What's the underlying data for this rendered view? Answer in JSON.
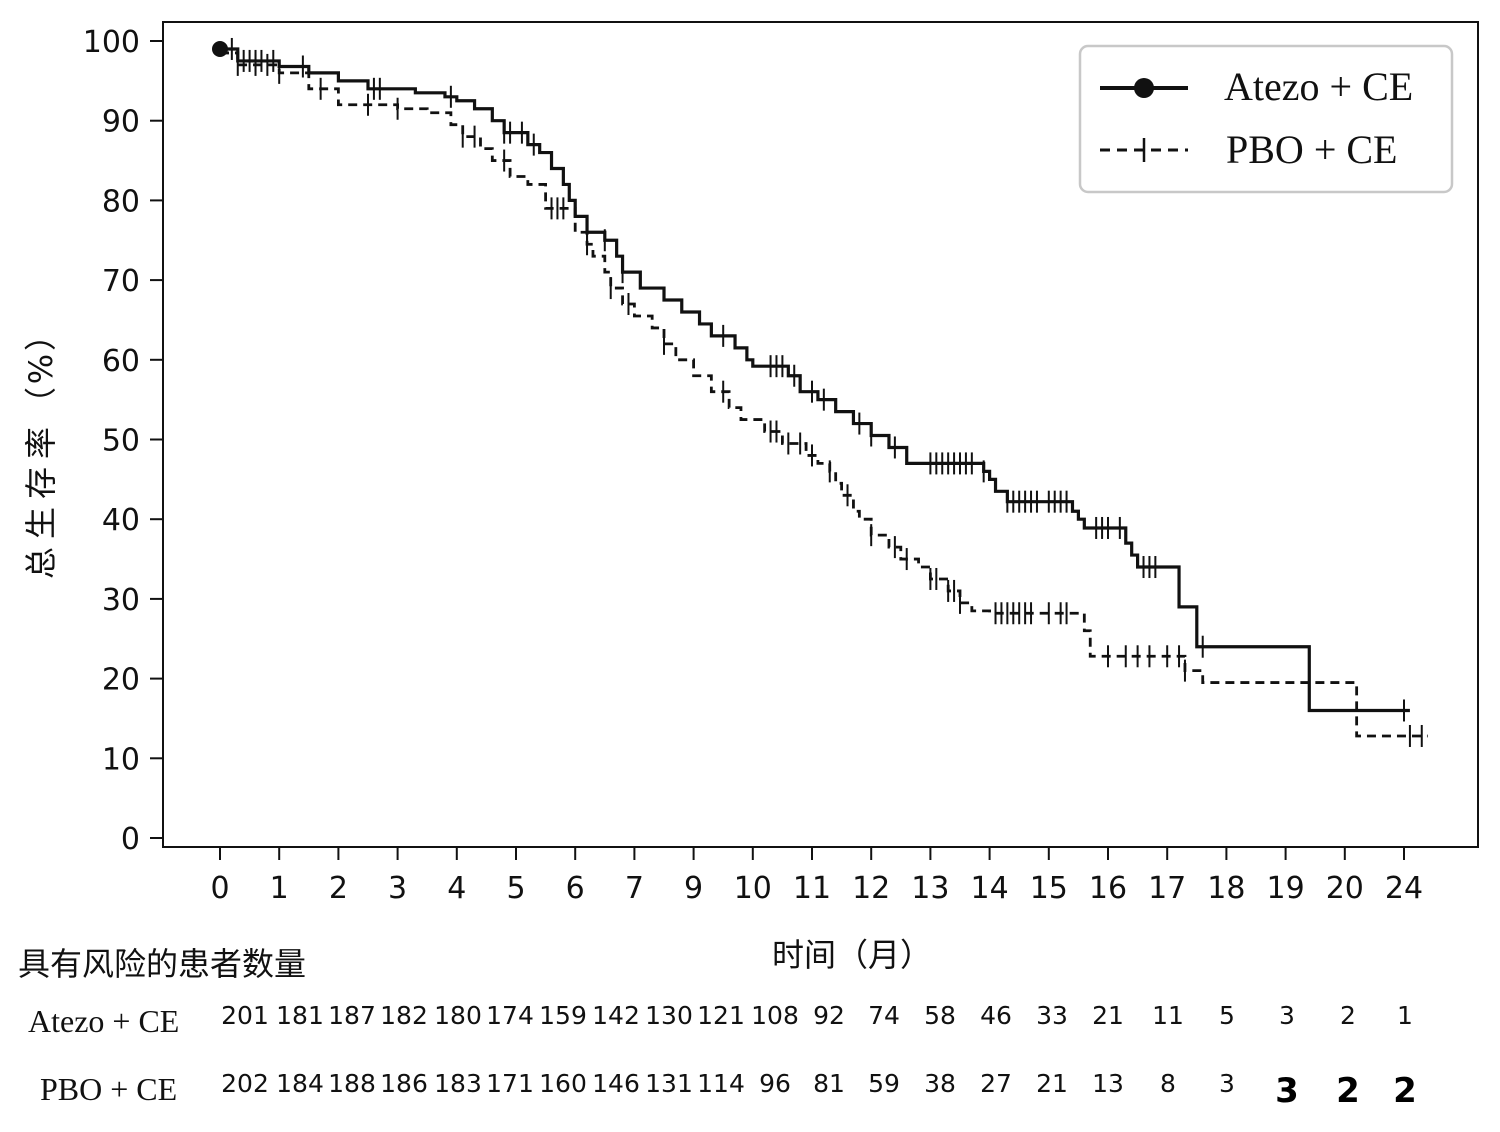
{
  "chart_data": {
    "type": "line",
    "subtype": "kaplan-meier",
    "ylabel": "总生存率（%）",
    "xlabel": "时间（月）",
    "yticks": [
      0,
      10,
      20,
      30,
      40,
      50,
      60,
      70,
      80,
      90,
      100
    ],
    "ylim": [
      0,
      100
    ],
    "x_ticks": [
      "0",
      "1",
      "2",
      "3",
      "4",
      "5",
      "6",
      "7",
      "9",
      "10",
      "11",
      "12",
      "13",
      "14",
      "15",
      "16",
      "17",
      "18",
      "19",
      "20",
      "24"
    ],
    "grid": false,
    "legend_position": "top-right",
    "series": [
      {
        "name": "Atezo + CE",
        "line_style": "solid",
        "marker": "circle",
        "color": "#111111",
        "steps": [
          [
            0,
            99
          ],
          [
            0.3,
            97.5
          ],
          [
            1,
            96.8
          ],
          [
            1.5,
            96
          ],
          [
            2,
            95
          ],
          [
            2.5,
            94
          ],
          [
            3.3,
            93.5
          ],
          [
            3.8,
            93
          ],
          [
            4,
            92.5
          ],
          [
            4.3,
            91.5
          ],
          [
            4.6,
            90
          ],
          [
            4.8,
            88.5
          ],
          [
            5.2,
            87
          ],
          [
            5.4,
            86
          ],
          [
            5.6,
            84
          ],
          [
            5.8,
            82
          ],
          [
            5.9,
            80
          ],
          [
            6,
            78
          ],
          [
            6.2,
            76
          ],
          [
            6.5,
            75
          ],
          [
            6.7,
            73
          ],
          [
            6.8,
            71
          ],
          [
            7.1,
            69
          ],
          [
            7.5,
            67.5
          ],
          [
            7.8,
            66
          ],
          [
            8.1,
            64.5
          ],
          [
            8.3,
            63
          ],
          [
            8.7,
            61.5
          ],
          [
            8.9,
            60
          ],
          [
            9,
            59.2
          ],
          [
            9.6,
            58
          ],
          [
            9.8,
            56
          ],
          [
            10.1,
            55
          ],
          [
            10.4,
            53.5
          ],
          [
            10.7,
            52
          ],
          [
            11,
            50.5
          ],
          [
            11.3,
            49
          ],
          [
            11.6,
            47
          ],
          [
            12.9,
            46
          ],
          [
            13,
            45
          ],
          [
            13.1,
            43.5
          ],
          [
            13.3,
            42.2
          ],
          [
            14.4,
            41
          ],
          [
            14.5,
            40
          ],
          [
            14.6,
            38.9
          ],
          [
            15.3,
            37
          ],
          [
            15.4,
            35.5
          ],
          [
            15.5,
            34
          ],
          [
            16.2,
            29
          ],
          [
            16.5,
            24
          ],
          [
            18.4,
            16
          ],
          [
            20.1,
            16
          ]
        ],
        "censor_x": [
          0.2,
          0.4,
          0.5,
          0.6,
          0.7,
          0.9,
          1.4,
          2.6,
          2.7,
          3.9,
          4.8,
          4.9,
          5.1,
          5.3,
          6.2,
          6.5,
          6.8,
          8.5,
          9.3,
          9.4,
          9.5,
          9.7,
          10.0,
          10.2,
          10.8,
          11.0,
          11.4,
          12.0,
          12.1,
          12.2,
          12.3,
          12.4,
          12.5,
          12.6,
          12.7,
          12.9,
          13.3,
          13.4,
          13.5,
          13.6,
          13.7,
          13.8,
          14.0,
          14.1,
          14.2,
          14.3,
          14.8,
          14.9,
          15.0,
          15.2,
          15.6,
          15.7,
          15.8,
          16.6,
          20.0
        ]
      },
      {
        "name": "PBO + CE",
        "line_style": "dashed",
        "marker": "plus",
        "color": "#111111",
        "steps": [
          [
            0,
            98.5
          ],
          [
            0.3,
            97
          ],
          [
            1,
            96
          ],
          [
            1.5,
            94
          ],
          [
            2,
            92
          ],
          [
            3,
            91.5
          ],
          [
            3.5,
            91
          ],
          [
            3.9,
            89.5
          ],
          [
            4.1,
            88
          ],
          [
            4.4,
            86.5
          ],
          [
            4.6,
            85
          ],
          [
            4.9,
            83
          ],
          [
            5.2,
            82
          ],
          [
            5.5,
            79
          ],
          [
            6,
            76
          ],
          [
            6.2,
            74.5
          ],
          [
            6.3,
            73
          ],
          [
            6.5,
            71
          ],
          [
            6.6,
            69
          ],
          [
            6.8,
            67
          ],
          [
            7,
            65.5
          ],
          [
            7.3,
            64
          ],
          [
            7.5,
            62
          ],
          [
            7.7,
            60
          ],
          [
            8,
            58
          ],
          [
            8.3,
            56
          ],
          [
            8.6,
            54
          ],
          [
            8.8,
            52.5
          ],
          [
            9.2,
            51
          ],
          [
            9.5,
            49.5
          ],
          [
            9.9,
            48
          ],
          [
            10.1,
            47
          ],
          [
            10.3,
            46
          ],
          [
            10.4,
            44.5
          ],
          [
            10.5,
            43
          ],
          [
            10.7,
            41
          ],
          [
            10.8,
            40
          ],
          [
            11,
            38
          ],
          [
            11.3,
            36.5
          ],
          [
            11.5,
            35
          ],
          [
            11.8,
            34
          ],
          [
            12,
            32.5
          ],
          [
            12.3,
            31
          ],
          [
            12.5,
            29.5
          ],
          [
            12.7,
            28.5
          ],
          [
            13,
            28.2
          ],
          [
            14.6,
            26
          ],
          [
            14.7,
            22.8
          ],
          [
            16.3,
            21
          ],
          [
            16.6,
            19.5
          ],
          [
            19.2,
            12.8
          ],
          [
            20.4,
            12.8
          ]
        ],
        "censor_x": [
          0.3,
          0.6,
          0.8,
          1.0,
          1.7,
          2.5,
          3.0,
          4.1,
          4.3,
          4.8,
          5.6,
          5.7,
          5.8,
          6.2,
          6.6,
          6.9,
          7.5,
          8.5,
          9.3,
          9.4,
          9.6,
          9.8,
          10.0,
          10.3,
          10.6,
          11.0,
          11.4,
          11.6,
          12.0,
          12.1,
          12.3,
          12.4,
          12.5,
          13.1,
          13.2,
          13.3,
          13.4,
          13.5,
          13.6,
          13.7,
          14.0,
          14.2,
          14.3,
          15.0,
          15.3,
          15.5,
          15.7,
          16.0,
          16.2,
          16.3,
          20.1,
          20.3
        ]
      }
    ]
  },
  "risk_table": {
    "title": "具有风险的患者数量",
    "rows": [
      {
        "name": "Atezo + CE",
        "values": [
          "201",
          "181",
          "187",
          "182",
          "180",
          "174",
          "159",
          "142",
          "130",
          "121",
          "108",
          "92",
          "74",
          "58",
          "46",
          "33",
          "21",
          "11",
          "5",
          "3",
          "2",
          "1"
        ]
      },
      {
        "name": "PBO + CE",
        "values": [
          "202",
          "184",
          "188",
          "186",
          "183",
          "171",
          "160",
          "146",
          "131",
          "114",
          "96",
          "81",
          "59",
          "38",
          "27",
          "21",
          "13",
          "8",
          "3",
          "3",
          "2",
          "2"
        ]
      }
    ]
  }
}
